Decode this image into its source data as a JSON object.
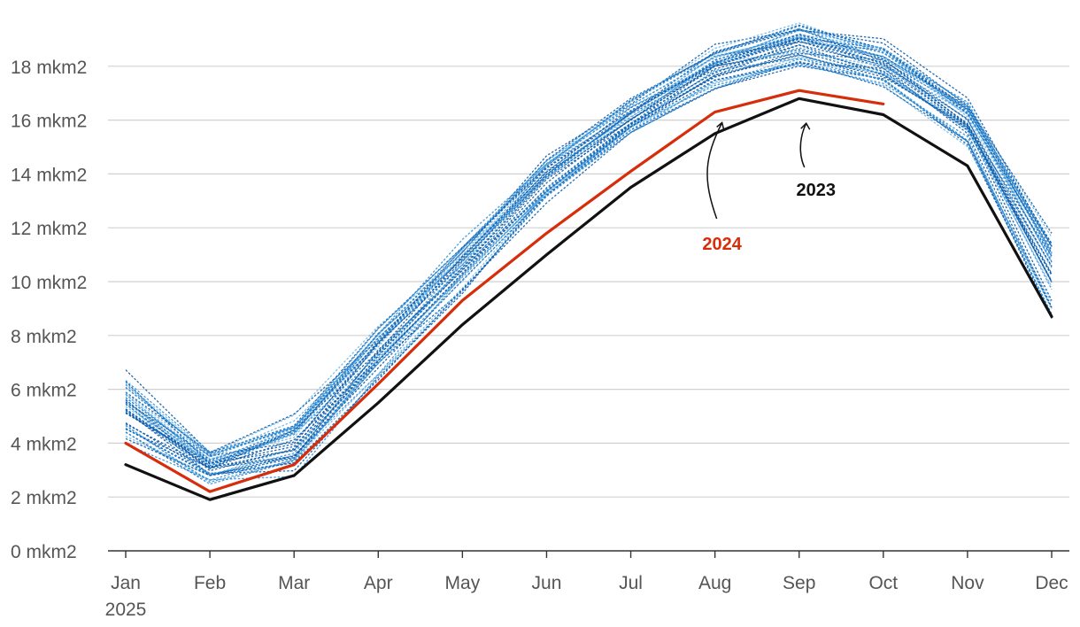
{
  "chart_data": {
    "type": "line",
    "title": "",
    "xlabel": "",
    "ylabel": "",
    "unit": "mkm2",
    "ylim": [
      0,
      20
    ],
    "yticks": [
      0,
      2,
      4,
      6,
      8,
      10,
      12,
      14,
      16,
      18
    ],
    "ytick_labels": [
      "0 mkm2",
      "2 mkm2",
      "4 mkm2",
      "6 mkm2",
      "8 mkm2",
      "10 mkm2",
      "12 mkm2",
      "14 mkm2",
      "16 mkm2",
      "18 mkm2"
    ],
    "categories": [
      "Jan",
      "Feb",
      "Mar",
      "Apr",
      "May",
      "Jun",
      "Jul",
      "Aug",
      "Sep",
      "Oct",
      "Nov",
      "Dec"
    ],
    "x_sublabel": "2025",
    "grid": true,
    "colors": {
      "historical_light": "#6cb6ea",
      "historical_mid": "#2f8fd8",
      "historical_dark": "#0a5aa8",
      "y2024": "#d62d0a",
      "y2023": "#111111",
      "grid": "#d0d0d0",
      "axis": "#333333"
    },
    "historical_envelope": {
      "low": [
        3.7,
        2.3,
        2.7,
        6.2,
        9.3,
        12.7,
        15.3,
        17.0,
        17.8,
        17.1,
        14.9,
        8.4
      ],
      "high": [
        6.9,
        3.9,
        5.3,
        8.6,
        11.7,
        14.8,
        17.0,
        18.9,
        19.8,
        19.1,
        16.9,
        12.1
      ]
    },
    "historical_series_count": 40,
    "series": [
      {
        "name": "2024",
        "values": [
          4.0,
          2.2,
          3.2,
          6.2,
          9.3,
          11.8,
          14.1,
          16.3,
          17.1,
          16.6,
          null,
          null
        ]
      },
      {
        "name": "2023",
        "values": [
          3.2,
          1.9,
          2.8,
          5.5,
          8.4,
          11.0,
          13.5,
          15.5,
          16.8,
          16.2,
          14.3,
          8.7
        ]
      }
    ],
    "annotations": [
      {
        "text": "2024",
        "series": "2024",
        "target_month": "Aug"
      },
      {
        "text": "2023",
        "series": "2023",
        "target_month": "Sep"
      }
    ]
  }
}
